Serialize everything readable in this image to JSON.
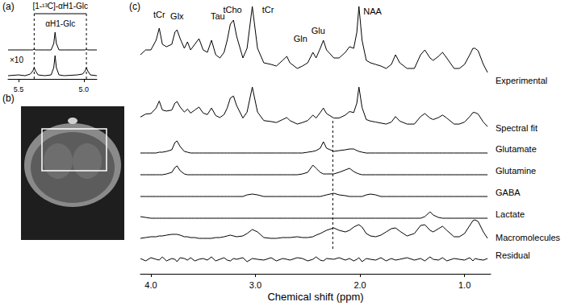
{
  "chart_data": [
    {
      "type": "line",
      "title": "(a)",
      "x": [
        5.58,
        5.5,
        5.45,
        5.41,
        5.39,
        5.38,
        5.37,
        5.35,
        5.3,
        5.25,
        5.23,
        5.22,
        5.21,
        5.19,
        5.15,
        5.05,
        5.01,
        4.99,
        4.98,
        4.97,
        4.95,
        4.9
      ],
      "xlim": [
        5.58,
        4.9
      ],
      "xticks": [
        5.5,
        {
          "value": 5,
          "label": "5.0"
        }
      ],
      "tick_labels": "x",
      "color": "#000000",
      "series": [
        {
          "values": [
            0,
            0,
            0,
            0,
            0,
            1,
            0,
            0,
            0,
            0,
            8,
            22,
            8,
            0,
            0,
            0,
            0,
            0,
            1,
            0,
            0,
            0
          ],
          "ylim": [
            -1,
            24
          ]
        },
        {
          "name": "×10",
          "values": [
            0,
            1,
            0,
            2,
            6,
            10,
            6,
            1,
            0,
            1,
            10,
            25,
            10,
            1,
            0,
            1,
            2,
            6,
            10,
            6,
            1,
            0
          ],
          "ylim": [
            -1,
            26
          ]
        }
      ],
      "annotations": [
        {
          "text": "[1-¹³C]-αH1-Glc",
          "x": 5.18
        },
        {
          "text": "αH1-Glc",
          "x": 5.18
        }
      ],
      "vlines": [
        5.38,
        4.98
      ]
    },
    {
      "type": "line",
      "title": "(c)",
      "x": [
        4.1,
        4.05,
        4.0,
        3.95,
        3.92,
        3.89,
        3.85,
        3.8,
        3.77,
        3.75,
        3.72,
        3.68,
        3.65,
        3.62,
        3.58,
        3.54,
        3.5,
        3.46,
        3.42,
        3.38,
        3.34,
        3.3,
        3.27,
        3.24,
        3.21,
        3.18,
        3.12,
        3.08,
        3.03,
        2.98,
        2.92,
        2.85,
        2.8,
        2.74,
        2.7,
        2.67,
        2.6,
        2.55,
        2.5,
        2.45,
        2.42,
        2.38,
        2.35,
        2.32,
        2.25,
        2.2,
        2.14,
        2.1,
        2.06,
        2.03,
        2.01,
        1.98,
        1.94,
        1.9,
        1.85,
        1.8,
        1.75,
        1.7,
        1.66,
        1.62,
        1.55,
        1.48,
        1.42,
        1.38,
        1.33,
        1.3,
        1.25,
        1.21,
        1.17,
        1.1,
        1.05,
        1.0,
        0.95,
        0.92,
        0.9,
        0.87,
        0.82,
        0.78
      ],
      "xlim": [
        4.1,
        0.75
      ],
      "xticks": [
        {
          "value": 4,
          "label": "4.0"
        },
        {
          "value": 3,
          "label": "3.0"
        },
        {
          "value": 2,
          "label": "2.0"
        },
        {
          "value": 1,
          "label": "1.0"
        }
      ],
      "xlabel": "Chemical shift (ppm)",
      "tick_labels": "x",
      "color": "#000000",
      "series": [
        {
          "name": "Experimental",
          "ylim": [
            0,
            95
          ],
          "values": [
            32,
            38,
            38,
            50,
            65,
            45,
            42,
            45,
            60,
            63,
            52,
            40,
            48,
            38,
            45,
            52,
            38,
            35,
            50,
            32,
            28,
            35,
            50,
            70,
            75,
            55,
            28,
            40,
            92,
            40,
            22,
            20,
            18,
            25,
            30,
            22,
            15,
            18,
            22,
            35,
            28,
            40,
            50,
            38,
            28,
            28,
            35,
            42,
            40,
            60,
            92,
            50,
            25,
            22,
            20,
            18,
            15,
            20,
            32,
            22,
            15,
            15,
            32,
            38,
            28,
            25,
            30,
            35,
            28,
            15,
            15,
            20,
            32,
            40,
            40,
            37,
            20,
            10
          ]
        },
        {
          "name": "Spectral fit",
          "ylim": [
            0,
            95
          ],
          "values": [
            30,
            36,
            37,
            48,
            62,
            44,
            42,
            44,
            58,
            61,
            50,
            40,
            46,
            38,
            44,
            50,
            38,
            35,
            48,
            33,
            29,
            35,
            48,
            68,
            72,
            53,
            28,
            40,
            90,
            40,
            23,
            21,
            19,
            25,
            29,
            23,
            16,
            19,
            23,
            34,
            28,
            39,
            48,
            37,
            28,
            28,
            34,
            41,
            39,
            58,
            90,
            49,
            25,
            22,
            20,
            18,
            16,
            20,
            31,
            22,
            16,
            16,
            31,
            37,
            28,
            25,
            29,
            34,
            28,
            16,
            16,
            20,
            31,
            39,
            39,
            36,
            20,
            11
          ]
        },
        {
          "name": "Glutamate",
          "ylim": [
            -2,
            17
          ],
          "values": [
            0,
            0,
            0,
            0,
            1,
            1,
            2,
            4,
            13,
            15,
            8,
            2,
            1,
            0,
            0,
            0,
            0,
            0,
            0,
            0,
            0,
            0,
            0,
            0,
            0,
            0,
            0,
            0,
            0,
            0,
            0,
            0,
            0,
            0,
            0,
            0,
            0,
            0,
            1,
            2,
            3,
            6,
            14,
            6,
            2,
            3,
            4,
            5,
            5,
            3,
            2,
            1,
            0,
            0,
            0,
            0,
            0,
            0,
            0,
            0,
            0,
            0,
            0,
            0,
            0,
            0,
            0,
            0,
            0,
            0,
            0,
            0,
            0,
            0,
            0,
            0,
            0,
            0
          ]
        },
        {
          "name": "Glutamine",
          "ylim": [
            -2,
            13
          ],
          "values": [
            0,
            0,
            0,
            0,
            0,
            0,
            1,
            3,
            9,
            11,
            5,
            1,
            0,
            0,
            0,
            0,
            0,
            0,
            0,
            0,
            0,
            0,
            0,
            0,
            0,
            0,
            0,
            0,
            0,
            0,
            0,
            0,
            0,
            0,
            0,
            0,
            0,
            1,
            3,
            12,
            8,
            3,
            1,
            1,
            1,
            3,
            6,
            8,
            4,
            2,
            1,
            0,
            0,
            0,
            0,
            0,
            0,
            0,
            0,
            0,
            0,
            0,
            0,
            0,
            0,
            0,
            0,
            0,
            0,
            0,
            0,
            0,
            0,
            0,
            0,
            0,
            0,
            0
          ]
        },
        {
          "name": "GABA",
          "ylim": [
            -2,
            6
          ],
          "values": [
            0,
            0,
            0,
            0,
            0,
            0,
            0,
            0,
            0,
            0,
            0,
            0,
            0,
            0,
            0,
            0,
            0,
            0,
            0,
            0,
            0,
            0,
            0,
            0,
            0,
            0,
            0,
            2,
            3,
            2,
            0,
            0,
            0,
            0,
            0,
            0,
            0,
            0,
            0,
            0,
            0,
            0,
            1,
            2,
            4,
            2,
            1,
            0,
            0,
            0,
            0,
            0,
            2,
            3,
            2,
            0,
            0,
            0,
            0,
            0,
            0,
            0,
            0,
            0,
            0,
            0,
            0,
            0,
            0,
            0,
            0,
            0,
            0,
            0,
            0,
            0,
            0,
            0
          ]
        },
        {
          "name": "Lactate",
          "ylim": [
            -2,
            10
          ],
          "values": [
            2,
            1,
            0,
            0,
            0,
            0,
            0,
            0,
            0,
            0,
            0,
            0,
            0,
            0,
            0,
            0,
            0,
            0,
            0,
            0,
            0,
            0,
            0,
            0,
            0,
            0,
            0,
            0,
            0,
            0,
            0,
            0,
            0,
            0,
            0,
            0,
            0,
            0,
            0,
            0,
            0,
            0,
            0,
            0,
            0,
            0,
            0,
            0,
            0,
            0,
            0,
            0,
            0,
            0,
            0,
            0,
            0,
            0,
            0,
            0,
            0,
            0,
            0,
            2,
            8,
            4,
            1,
            0,
            0,
            0,
            0,
            0,
            0,
            0,
            0,
            0,
            0,
            0
          ]
        },
        {
          "name": "Macromolecules",
          "ylim": [
            -2,
            30
          ],
          "values": [
            4,
            5,
            6,
            6,
            7,
            7,
            8,
            9,
            9,
            9,
            8,
            6,
            6,
            5,
            5,
            4,
            4,
            4,
            4,
            5,
            5,
            6,
            7,
            8,
            7,
            6,
            7,
            10,
            15,
            12,
            5,
            4,
            4,
            5,
            5,
            5,
            6,
            5,
            5,
            6,
            8,
            10,
            12,
            14,
            17,
            14,
            12,
            14,
            18,
            20,
            21,
            18,
            10,
            7,
            6,
            8,
            12,
            16,
            17,
            13,
            7,
            10,
            20,
            21,
            14,
            12,
            16,
            19,
            14,
            6,
            6,
            10,
            20,
            26,
            27,
            25,
            12,
            4
          ]
        },
        {
          "name": "Residual",
          "ylim": [
            -5,
            5
          ],
          "values": [
            1,
            -2,
            2,
            0,
            -1,
            3,
            -2,
            1,
            0,
            -3,
            2,
            1,
            -1,
            2,
            -2,
            0,
            1,
            -1,
            3,
            -2,
            0,
            2,
            -1,
            -2,
            1,
            0,
            2,
            -3,
            1,
            0,
            -1,
            2,
            -2,
            1,
            0,
            -1,
            2,
            1,
            -2,
            0,
            3,
            -1,
            -2,
            1,
            0,
            2,
            -1,
            1,
            -2,
            0,
            2,
            -3,
            1,
            0,
            -1,
            2,
            -2,
            1,
            -1,
            0,
            2,
            -1,
            1,
            -2,
            3,
            0,
            -1,
            2,
            -2,
            1,
            0,
            -1,
            2,
            -2,
            1,
            0,
            -1,
            1
          ]
        }
      ],
      "annotations": [
        {
          "text": "tCr",
          "x": 3.92,
          "y": 82
        },
        {
          "text": "Glx",
          "x": 3.75,
          "y": 80
        },
        {
          "text": "Tau",
          "x": 3.36,
          "y": 80
        },
        {
          "text": "tCho",
          "x": 3.22,
          "y": 88
        },
        {
          "text": "tCr",
          "x": 2.88,
          "y": 88
        },
        {
          "text": "Gln",
          "x": 2.57,
          "y": 52
        },
        {
          "text": "Glu",
          "x": 2.4,
          "y": 62
        },
        {
          "text": "NAA",
          "x": 1.88,
          "y": 86
        }
      ],
      "vlines": [
        2.26
      ]
    }
  ],
  "image_panel": {
    "title": "(b)"
  }
}
